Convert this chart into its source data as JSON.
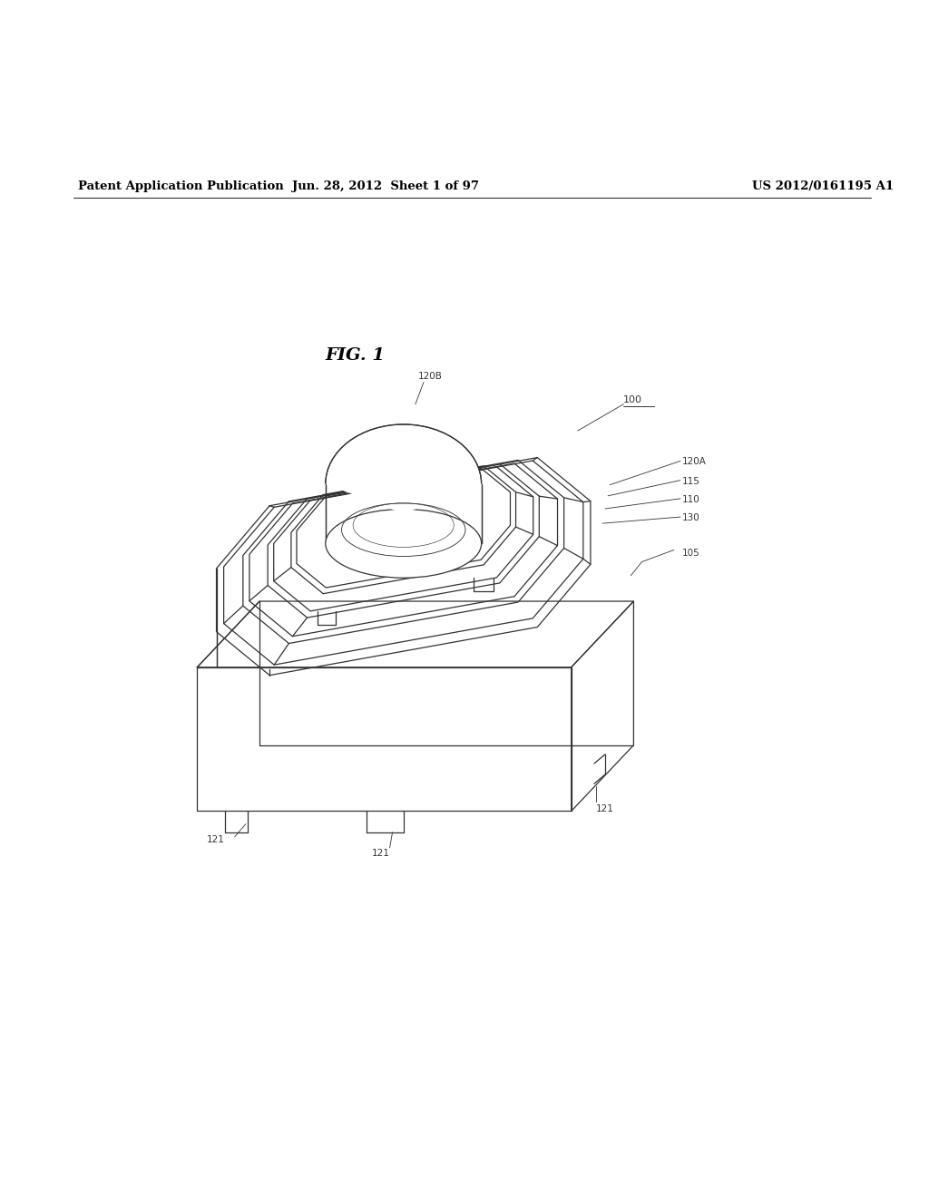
{
  "header_left": "Patent Application Publication",
  "header_center": "Jun. 28, 2012  Sheet 1 of 97",
  "header_right": "US 2012/0161195 A1",
  "fig_label": "FIG. 1",
  "bg_color": "#ffffff",
  "line_color": "#333333"
}
